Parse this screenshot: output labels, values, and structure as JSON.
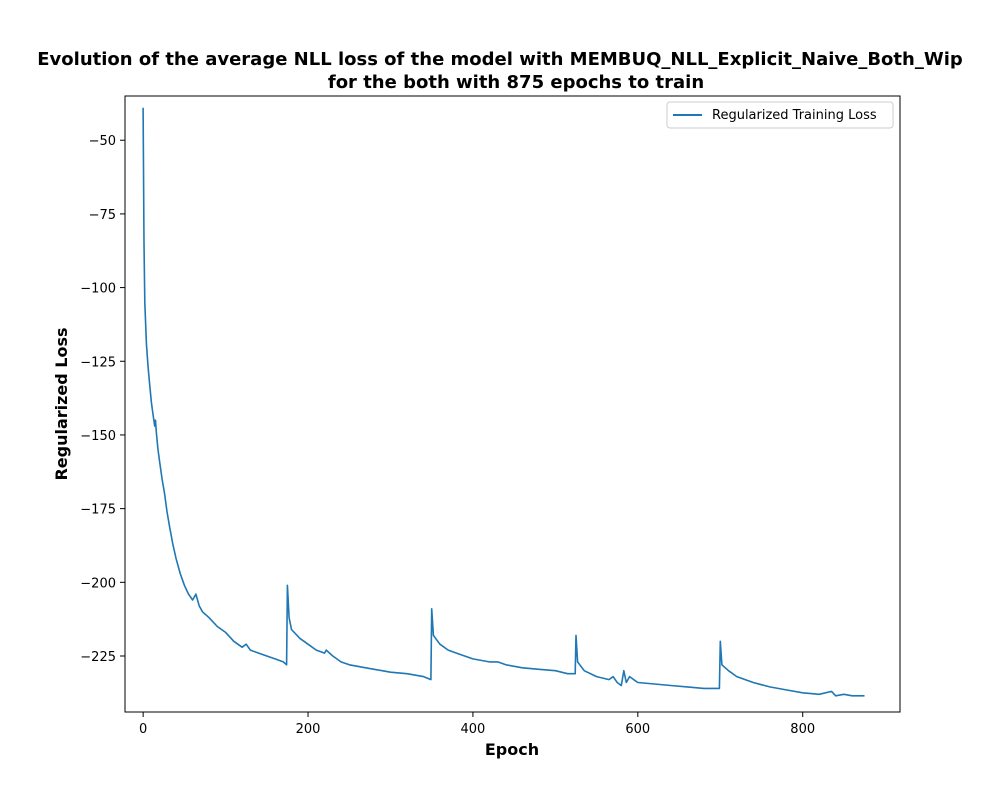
{
  "chart_data": {
    "type": "line",
    "title_line1": "Evolution of the average NLL loss of the model with MEMBUQ_NLL_Explicit_Naive_Both_Wip",
    "title_line2": "for the both with 875 epochs to train",
    "xlabel": "Epoch",
    "ylabel": "Regularized Loss",
    "xlim": [
      -22,
      918
    ],
    "ylim": [
      -244,
      -35
    ],
    "x_ticks": [
      0,
      200,
      400,
      600,
      800
    ],
    "y_ticks": [
      -50,
      -75,
      -100,
      -125,
      -150,
      -175,
      -200,
      -225
    ],
    "grid": false,
    "legend_position": "top-right",
    "color": "#1f77b4",
    "series": [
      {
        "name": "Regularized Training Loss",
        "points": [
          [
            0,
            -39
          ],
          [
            1,
            -85
          ],
          [
            2,
            -105
          ],
          [
            4,
            -119
          ],
          [
            6,
            -127
          ],
          [
            8,
            -133
          ],
          [
            10,
            -139
          ],
          [
            12,
            -143
          ],
          [
            14,
            -147
          ],
          [
            15,
            -145
          ],
          [
            16,
            -149
          ],
          [
            18,
            -155
          ],
          [
            20,
            -159
          ],
          [
            23,
            -165
          ],
          [
            26,
            -170
          ],
          [
            29,
            -176
          ],
          [
            32,
            -181
          ],
          [
            36,
            -187
          ],
          [
            40,
            -192
          ],
          [
            45,
            -197
          ],
          [
            50,
            -201
          ],
          [
            55,
            -204
          ],
          [
            60,
            -206
          ],
          [
            64,
            -204
          ],
          [
            68,
            -208
          ],
          [
            72,
            -210
          ],
          [
            80,
            -212
          ],
          [
            90,
            -215
          ],
          [
            100,
            -217
          ],
          [
            110,
            -220
          ],
          [
            120,
            -222
          ],
          [
            125,
            -221
          ],
          [
            130,
            -223
          ],
          [
            140,
            -224
          ],
          [
            150,
            -225
          ],
          [
            160,
            -226
          ],
          [
            170,
            -227
          ],
          [
            174,
            -228
          ],
          [
            175,
            -201
          ],
          [
            177,
            -212
          ],
          [
            180,
            -216
          ],
          [
            190,
            -219
          ],
          [
            200,
            -221
          ],
          [
            210,
            -223
          ],
          [
            220,
            -224
          ],
          [
            222,
            -223
          ],
          [
            230,
            -225
          ],
          [
            240,
            -227
          ],
          [
            250,
            -228
          ],
          [
            270,
            -229
          ],
          [
            290,
            -230
          ],
          [
            300,
            -230.5
          ],
          [
            320,
            -231
          ],
          [
            340,
            -232
          ],
          [
            349,
            -233
          ],
          [
            350,
            -209
          ],
          [
            352,
            -218
          ],
          [
            360,
            -221
          ],
          [
            370,
            -223
          ],
          [
            380,
            -224
          ],
          [
            400,
            -226
          ],
          [
            420,
            -227
          ],
          [
            430,
            -227
          ],
          [
            440,
            -228
          ],
          [
            460,
            -229
          ],
          [
            480,
            -229.5
          ],
          [
            500,
            -230
          ],
          [
            515,
            -231
          ],
          [
            524,
            -231
          ],
          [
            525,
            -218
          ],
          [
            527,
            -227
          ],
          [
            535,
            -230
          ],
          [
            550,
            -232
          ],
          [
            565,
            -233
          ],
          [
            570,
            -232
          ],
          [
            575,
            -234
          ],
          [
            580,
            -235
          ],
          [
            583,
            -230
          ],
          [
            586,
            -234
          ],
          [
            590,
            -232
          ],
          [
            600,
            -234
          ],
          [
            620,
            -234.5
          ],
          [
            640,
            -235
          ],
          [
            660,
            -235.5
          ],
          [
            680,
            -236
          ],
          [
            699,
            -236
          ],
          [
            700,
            -220
          ],
          [
            702,
            -228
          ],
          [
            710,
            -230
          ],
          [
            720,
            -232
          ],
          [
            740,
            -234
          ],
          [
            760,
            -235.5
          ],
          [
            780,
            -236.5
          ],
          [
            800,
            -237.5
          ],
          [
            820,
            -238
          ],
          [
            835,
            -237
          ],
          [
            840,
            -238.5
          ],
          [
            850,
            -238
          ],
          [
            860,
            -238.5
          ],
          [
            875,
            -238.5
          ]
        ]
      }
    ]
  }
}
